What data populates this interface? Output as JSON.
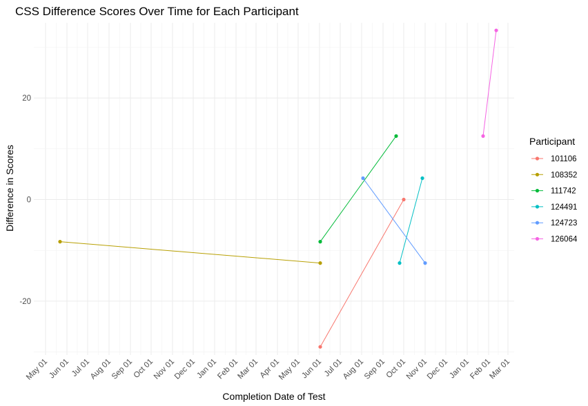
{
  "chart_data": {
    "type": "line",
    "title": "CSS Difference Scores Over Time for Each Participant",
    "xlabel": "Completion Date of Test",
    "ylabel": "Difference in Scores",
    "x_range": [
      "2023-04-14",
      "2025-03-10"
    ],
    "ylim": [
      -30.6,
      34.8
    ],
    "y_ticks": [
      -20,
      0,
      20
    ],
    "x_ticks": [
      {
        "date": "2023-05-01",
        "label": "May 01"
      },
      {
        "date": "2023-06-01",
        "label": "Jun 01"
      },
      {
        "date": "2023-07-01",
        "label": "Jul 01"
      },
      {
        "date": "2023-08-01",
        "label": "Aug 01"
      },
      {
        "date": "2023-09-01",
        "label": "Sep 01"
      },
      {
        "date": "2023-10-01",
        "label": "Oct 01"
      },
      {
        "date": "2023-11-01",
        "label": "Nov 01"
      },
      {
        "date": "2023-12-01",
        "label": "Dec 01"
      },
      {
        "date": "2024-01-01",
        "label": "Jan 01"
      },
      {
        "date": "2024-02-01",
        "label": "Feb 01"
      },
      {
        "date": "2024-03-01",
        "label": "Mar 01"
      },
      {
        "date": "2024-04-01",
        "label": "Apr 01"
      },
      {
        "date": "2024-05-01",
        "label": "May 01"
      },
      {
        "date": "2024-06-01",
        "label": "Jun 01"
      },
      {
        "date": "2024-07-01",
        "label": "Jul 01"
      },
      {
        "date": "2024-08-01",
        "label": "Aug 01"
      },
      {
        "date": "2024-09-01",
        "label": "Sep 01"
      },
      {
        "date": "2024-10-01",
        "label": "Oct 01"
      },
      {
        "date": "2024-11-01",
        "label": "Nov 01"
      },
      {
        "date": "2024-12-01",
        "label": "Dec 01"
      },
      {
        "date": "2025-01-01",
        "label": "Jan 01"
      },
      {
        "date": "2025-02-01",
        "label": "Feb 01"
      },
      {
        "date": "2025-03-01",
        "label": "Mar 01"
      }
    ],
    "grid": true,
    "legend": {
      "title": "Participant",
      "position": "right"
    },
    "series": [
      {
        "name": "101106",
        "color": "#F8766D",
        "points": [
          {
            "x": "2024-06-02",
            "y": -29
          },
          {
            "x": "2024-10-01",
            "y": 0
          }
        ]
      },
      {
        "name": "108352",
        "color": "#B79F00",
        "points": [
          {
            "x": "2023-05-22",
            "y": -8.3
          },
          {
            "x": "2024-06-02",
            "y": -12.5
          }
        ]
      },
      {
        "name": "111742",
        "color": "#00BA38",
        "points": [
          {
            "x": "2024-06-02",
            "y": -8.3
          },
          {
            "x": "2024-09-20",
            "y": 12.5
          }
        ]
      },
      {
        "name": "124491",
        "color": "#00BFC4",
        "points": [
          {
            "x": "2024-09-25",
            "y": -12.5
          },
          {
            "x": "2024-10-28",
            "y": 4.2
          }
        ]
      },
      {
        "name": "124723",
        "color": "#619CFF",
        "points": [
          {
            "x": "2024-08-03",
            "y": 4.2
          },
          {
            "x": "2024-11-01",
            "y": -12.5
          }
        ]
      },
      {
        "name": "126064",
        "color": "#F564E3",
        "points": [
          {
            "x": "2025-01-24",
            "y": 12.5
          },
          {
            "x": "2025-02-12",
            "y": 33.3
          }
        ]
      }
    ]
  }
}
